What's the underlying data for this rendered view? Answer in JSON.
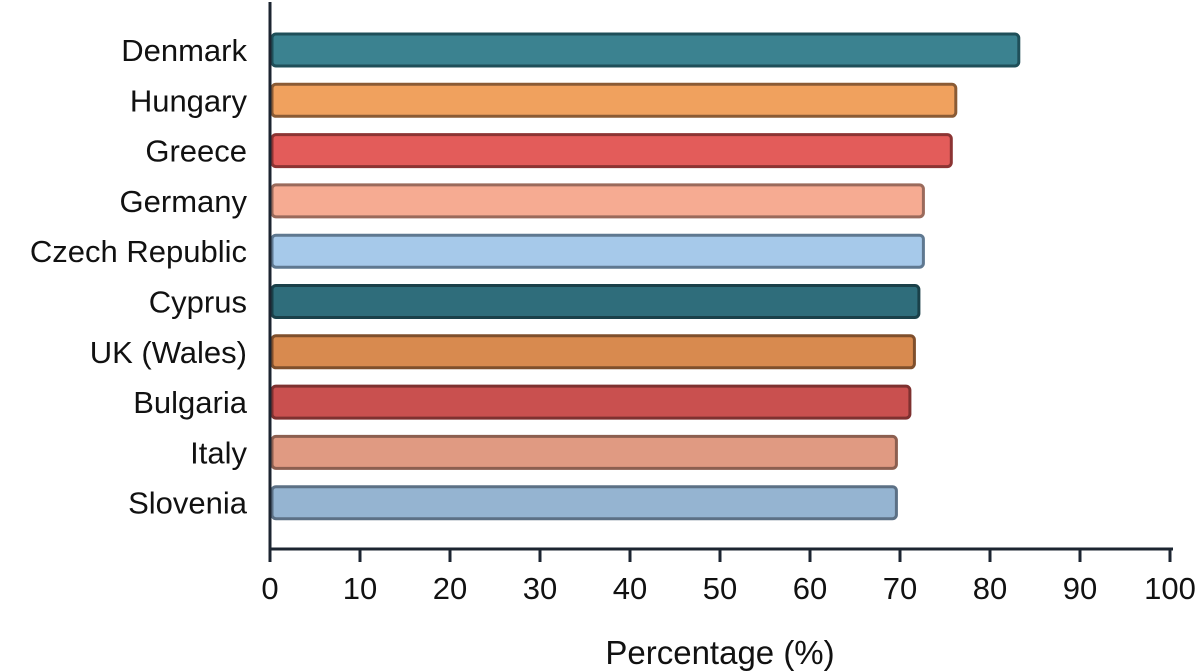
{
  "chart_data": {
    "type": "bar",
    "orientation": "horizontal",
    "title": "",
    "xlabel": "Percentage (%)",
    "ylabel": "",
    "xlim": [
      0,
      100
    ],
    "xticks": [
      "0",
      "10",
      "20",
      "30",
      "40",
      "50",
      "60",
      "70",
      "80",
      "90",
      "100"
    ],
    "grid": false,
    "legend": "none",
    "categories": [
      "Denmark",
      "Hungary",
      "Greece",
      "Germany",
      "Czech Republic",
      "Cyprus",
      "UK (Wales)",
      "Bulgaria",
      "Italy",
      "Slovenia"
    ],
    "values": [
      83.2,
      76.2,
      75.7,
      72.6,
      72.6,
      72.1,
      71.6,
      71.1,
      69.6,
      69.6
    ],
    "colors": [
      "#3b8290",
      "#f0a15e",
      "#e35c5a",
      "#f6ab92",
      "#a6c9ea",
      "#2f6d7b",
      "#d88a4f",
      "#c9504f",
      "#e09a82",
      "#95b4d1"
    ],
    "border_colors": [
      "#1f4f59",
      "#8a5b35",
      "#8c3433",
      "#9a6a5b",
      "#5f7890",
      "#1a4049",
      "#7f4f2c",
      "#7e3130",
      "#8c5f50",
      "#5c7085"
    ]
  }
}
